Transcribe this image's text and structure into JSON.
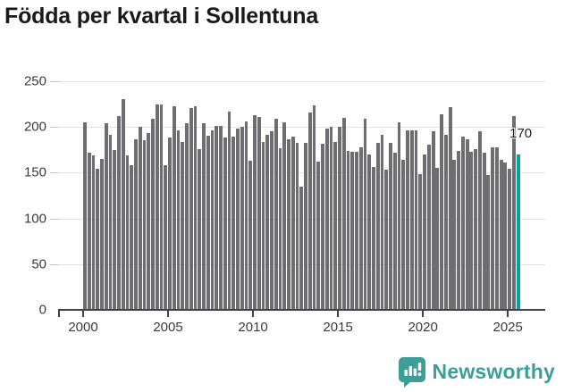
{
  "title": "Födda per kvartal i Sollentuna",
  "chart_data": {
    "type": "bar",
    "title": "Födda per kvartal i Sollentuna",
    "xlabel": "",
    "ylabel": "",
    "period_start": "2000 Q1",
    "period_end": "2025 Q3",
    "values": [
      205,
      172,
      169,
      154,
      165,
      204,
      191,
      175,
      212,
      230,
      169,
      158,
      187,
      200,
      186,
      193,
      209,
      225,
      225,
      158,
      188,
      223,
      196,
      184,
      204,
      221,
      223,
      176,
      204,
      190,
      196,
      201,
      201,
      188,
      217,
      189,
      198,
      200,
      206,
      163,
      213,
      211,
      184,
      191,
      195,
      209,
      177,
      205,
      187,
      189,
      183,
      135,
      183,
      216,
      224,
      162,
      182,
      198,
      200,
      184,
      200,
      210,
      174,
      173,
      173,
      178,
      209,
      170,
      156,
      183,
      191,
      153,
      183,
      172,
      205,
      164,
      196,
      196,
      196,
      148,
      170,
      181,
      195,
      155,
      214,
      191,
      222,
      164,
      174,
      189,
      187,
      173,
      176,
      195,
      172,
      147,
      178,
      178,
      164,
      161,
      154,
      212,
      170
    ],
    "highlight_index": 102,
    "highlight_label": "170",
    "ylim": [
      0,
      250
    ],
    "yticks": [
      0,
      50,
      100,
      150,
      200,
      250
    ],
    "xticks": [
      "2000",
      "2005",
      "2010",
      "2015",
      "2020",
      "2025"
    ],
    "grid": true,
    "legend": "none",
    "bar_color": "#6d6d72",
    "highlight_color": "#00a2a3"
  },
  "footer": {
    "brand": "Newsworthy",
    "brand_color": "#3b9e99",
    "logo_icon": "speech-bubble-bar-chart"
  }
}
